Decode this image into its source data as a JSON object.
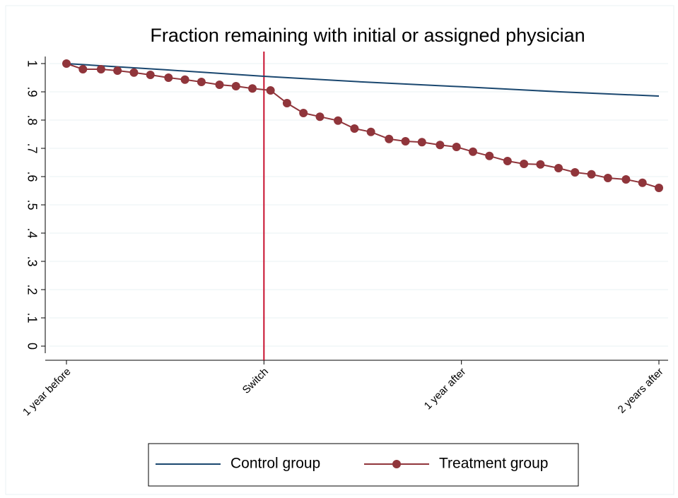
{
  "chart_data": {
    "type": "line",
    "title": "Fraction remaining with initial or assigned physician",
    "xlim": [
      -12,
      24
    ],
    "xticks": [
      {
        "value": -12,
        "label": "1 year before"
      },
      {
        "value": 0,
        "label": "Switch"
      },
      {
        "value": 12,
        "label": "1 year after"
      },
      {
        "value": 24,
        "label": "2 years after"
      }
    ],
    "ylim": [
      0,
      1
    ],
    "yticks": [
      0,
      {
        "value": 0.1,
        "label": ".1"
      },
      {
        "value": 0.2,
        "label": ".2"
      },
      {
        "value": 0.3,
        "label": ".3"
      },
      {
        "value": 0.4,
        "label": ".4"
      },
      {
        "value": 0.5,
        "label": ".5"
      },
      {
        "value": 0.6,
        "label": ".6"
      },
      {
        "value": 0.7,
        "label": ".7"
      },
      {
        "value": 0.8,
        "label": ".8"
      },
      {
        "value": 0.9,
        "label": ".9"
      },
      1
    ],
    "grid": true,
    "reference_line": {
      "x": 0,
      "color": "#c8102e"
    },
    "legend": "bottom",
    "series": [
      {
        "name": "Control group",
        "color": "#1a476f",
        "markers": false,
        "x": [
          -12,
          -6,
          0,
          6,
          12,
          18,
          24
        ],
        "values": [
          1.0,
          0.978,
          0.955,
          0.935,
          0.918,
          0.9,
          0.885
        ]
      },
      {
        "name": "Treatment group",
        "color": "#90353b",
        "markers": true,
        "x": [
          -12,
          -11,
          -9.9,
          -8.9,
          -7.9,
          -6.9,
          -5.8,
          -4.8,
          -3.8,
          -2.7,
          -1.7,
          -0.7,
          0.4,
          1.4,
          2.4,
          3.4,
          4.5,
          5.5,
          6.5,
          7.6,
          8.6,
          9.6,
          10.7,
          11.7,
          12.7,
          13.7,
          14.8,
          15.8,
          16.8,
          17.9,
          18.9,
          19.9,
          20.9,
          22,
          23,
          24
        ],
        "values": [
          1.0,
          0.98,
          0.98,
          0.975,
          0.968,
          0.96,
          0.95,
          0.943,
          0.935,
          0.925,
          0.92,
          0.912,
          0.905,
          0.86,
          0.825,
          0.812,
          0.798,
          0.77,
          0.758,
          0.733,
          0.725,
          0.722,
          0.712,
          0.705,
          0.688,
          0.673,
          0.655,
          0.645,
          0.643,
          0.63,
          0.615,
          0.608,
          0.595,
          0.59,
          0.578,
          0.56
        ]
      }
    ]
  }
}
